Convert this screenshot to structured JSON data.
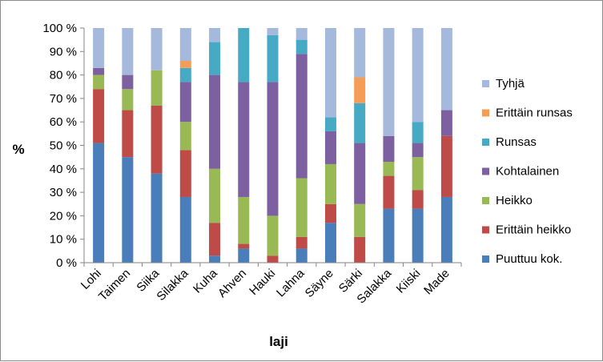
{
  "chart_data": {
    "type": "bar",
    "stacked": true,
    "percent": true,
    "xlabel": "laji",
    "ylabel": "%",
    "ylim": [
      0,
      100
    ],
    "yticks": [
      "0 %",
      "10 %",
      "20 %",
      "30 %",
      "40 %",
      "50 %",
      "60 %",
      "70 %",
      "80 %",
      "90 %",
      "100 %"
    ],
    "grid": false,
    "legend_position": "right",
    "categories": [
      "Lohi",
      "Taimen",
      "Siika",
      "Silakka",
      "Kuha",
      "Ahven",
      "Hauki",
      "Lahna",
      "Säyne",
      "Särki",
      "Salakka",
      "Kiiski",
      "Made"
    ],
    "series": [
      {
        "name": "Puuttuu kok.",
        "color": "#4a7ebb",
        "values": [
          51,
          45,
          38,
          28,
          3,
          6,
          0,
          6,
          17,
          0,
          23,
          23,
          28
        ]
      },
      {
        "name": "Erittäin heikko",
        "color": "#be4b48",
        "values": [
          23,
          20,
          29,
          20,
          14,
          2,
          3,
          5,
          8,
          11,
          14,
          8,
          26
        ]
      },
      {
        "name": "Heikko",
        "color": "#98b954",
        "values": [
          6,
          9,
          15,
          12,
          23,
          20,
          17,
          25,
          17,
          14,
          6,
          14,
          0
        ]
      },
      {
        "name": "Kohtalainen",
        "color": "#7d60a0",
        "values": [
          3,
          6,
          0,
          17,
          40,
          49,
          57,
          53,
          14,
          26,
          11,
          6,
          11
        ]
      },
      {
        "name": "Runsas",
        "color": "#46aac5",
        "values": [
          0,
          0,
          0,
          6,
          14,
          23,
          20,
          6,
          6,
          17,
          0,
          9,
          0
        ]
      },
      {
        "name": "Erittäin runsas",
        "color": "#f59d56",
        "values": [
          0,
          0,
          0,
          3,
          0,
          0,
          0,
          0,
          0,
          11,
          0,
          0,
          0
        ]
      },
      {
        "name": "Tyhjä",
        "color": "#a5b9dc",
        "values": [
          17,
          20,
          18,
          14,
          6,
          0,
          3,
          5,
          38,
          21,
          46,
          40,
          35
        ]
      }
    ]
  }
}
